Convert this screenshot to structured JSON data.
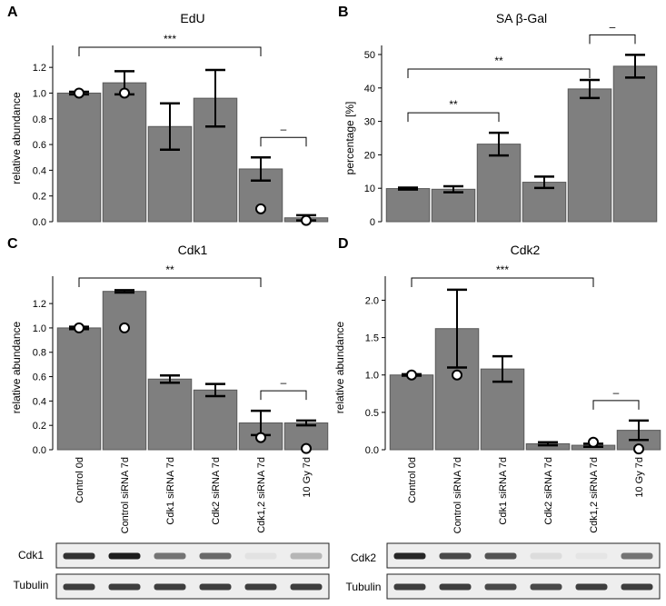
{
  "chart_data": [
    {
      "panel": "A",
      "type": "bar",
      "title": "EdU",
      "xlabel": "",
      "ylabel": "relative abundance",
      "ylim": [
        0,
        1.3
      ],
      "yticks": [
        "0.0",
        "0.2",
        "0.4",
        "0.6",
        "0.8",
        "1.0",
        "1.2"
      ],
      "categories": [
        "Control 0d",
        "Control siRNA 7d",
        "Cdk1 siRNA 7d",
        "Cdk2 siRNA 7d",
        "Cdk1,2 siRNA 7d",
        "10 Gy 7d"
      ],
      "values": [
        1.0,
        1.08,
        0.74,
        0.96,
        0.41,
        0.03
      ],
      "errors": [
        0.01,
        0.09,
        0.18,
        0.22,
        0.09,
        0.02
      ],
      "points": [
        1.0,
        1.0,
        null,
        null,
        0.1,
        0.01
      ],
      "significance": [
        {
          "from": 0,
          "to": 4,
          "label": "***"
        },
        {
          "from": 4,
          "to": 5,
          "label": "–"
        }
      ]
    },
    {
      "panel": "B",
      "type": "bar",
      "title": "SA β-Gal",
      "xlabel": "",
      "ylabel": "percentage [%]",
      "ylim": [
        0,
        50
      ],
      "yticks": [
        "0",
        "10",
        "20",
        "30",
        "40",
        "50"
      ],
      "categories": [
        "Control 0d",
        "Control siRNA 7d",
        "Cdk1 siRNA 7d",
        "Cdk2 siRNA 7d",
        "Cdk1,2 siRNA 7d",
        "10 Gy 7d"
      ],
      "values": [
        9.9,
        9.7,
        23.2,
        11.8,
        39.7,
        46.5
      ],
      "errors": [
        0.3,
        0.9,
        3.4,
        1.7,
        2.7,
        3.4
      ],
      "points": [],
      "significance": [
        {
          "from": 0,
          "to": 2,
          "label": "**"
        },
        {
          "from": 0,
          "to": 4,
          "label": "**"
        },
        {
          "from": 4,
          "to": 5,
          "label": "–"
        }
      ]
    },
    {
      "panel": "C",
      "type": "bar",
      "title": "Cdk1",
      "xlabel": "",
      "ylabel": "relative abundance",
      "ylim": [
        0,
        1.35
      ],
      "yticks": [
        "0.0",
        "0.2",
        "0.4",
        "0.6",
        "0.8",
        "1.0",
        "1.2"
      ],
      "categories": [
        "Control 0d",
        "Control siRNA 7d",
        "Cdk1 siRNA 7d",
        "Cdk2 siRNA 7d",
        "Cdk1,2 siRNA 7d",
        "10 Gy 7d"
      ],
      "values": [
        1.0,
        1.3,
        0.58,
        0.49,
        0.22,
        0.22
      ],
      "errors": [
        0.01,
        0.01,
        0.03,
        0.05,
        0.1,
        0.02
      ],
      "points": [
        1.0,
        1.0,
        null,
        null,
        0.1,
        0.01
      ],
      "significance": [
        {
          "from": 0,
          "to": 4,
          "label": "**"
        },
        {
          "from": 4,
          "to": 5,
          "label": "–"
        }
      ]
    },
    {
      "panel": "D",
      "type": "bar",
      "title": "Cdk2",
      "xlabel": "",
      "ylabel": "relative abundance",
      "ylim": [
        0,
        2.2
      ],
      "yticks": [
        "0.0",
        "0.5",
        "1.0",
        "1.5",
        "2.0"
      ],
      "categories": [
        "Control 0d",
        "Control siRNA 7d",
        "Cdk1 siRNA 7d",
        "Cdk2 siRNA 7d",
        "Cdk1,2 siRNA 7d",
        "10 Gy 7d"
      ],
      "values": [
        1.0,
        1.62,
        1.08,
        0.08,
        0.06,
        0.26
      ],
      "errors": [
        0.01,
        0.52,
        0.17,
        0.02,
        0.02,
        0.13
      ],
      "points": [
        1.0,
        1.0,
        null,
        null,
        0.1,
        0.01
      ],
      "significance": [
        {
          "from": 0,
          "to": 4,
          "label": "***"
        },
        {
          "from": 4,
          "to": 5,
          "label": "–"
        }
      ]
    }
  ],
  "blots": [
    {
      "label": "Cdk1",
      "intensities": [
        0.85,
        0.95,
        0.55,
        0.6,
        0.05,
        0.25
      ]
    },
    {
      "label": "Tubulin",
      "intensities": [
        0.8,
        0.8,
        0.8,
        0.8,
        0.8,
        0.8
      ]
    },
    {
      "label": "Cdk2",
      "intensities": [
        0.9,
        0.75,
        0.7,
        0.08,
        0.04,
        0.55
      ]
    },
    {
      "label": "Tubulin",
      "intensities": [
        0.8,
        0.8,
        0.75,
        0.75,
        0.8,
        0.8
      ]
    }
  ],
  "colors": {
    "bar_fill": "#7f7f7f",
    "bar_stroke": "#595959",
    "text": "#000000",
    "point_fill": "#ffffff",
    "blot_background": "#eeeeee",
    "band": "#111111"
  }
}
